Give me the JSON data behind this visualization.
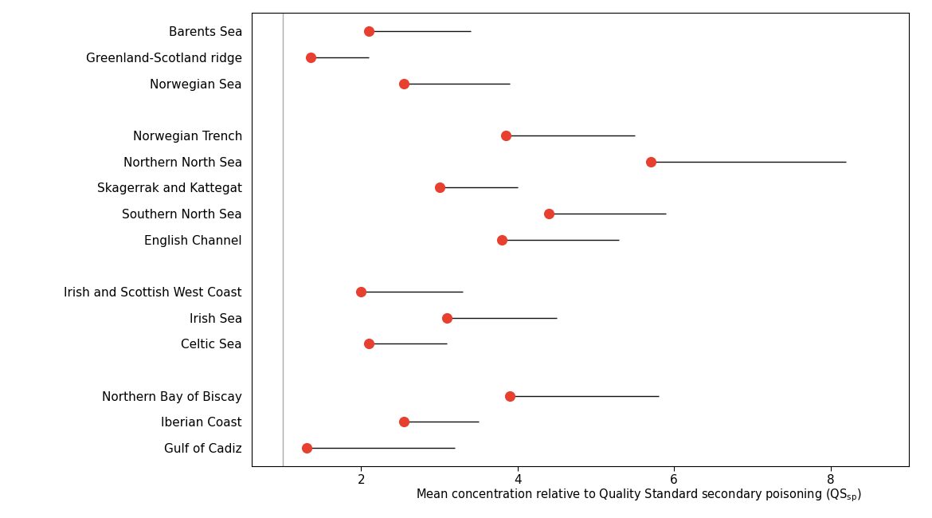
{
  "categories": [
    "Barents Sea",
    "Greenland-Scotland ridge",
    "Norwegian Sea",
    "",
    "Norwegian Trench",
    "Northern North Sea",
    "Skagerrak and Kattegat",
    "Southern North Sea",
    "English Channel",
    "",
    "Irish and Scottish West Coast",
    "Irish Sea",
    "Celtic Sea",
    "",
    "Northern Bay of Biscay",
    "Iberian Coast",
    "Gulf of Cadiz"
  ],
  "mean_values": [
    2.1,
    1.35,
    2.55,
    null,
    3.85,
    5.7,
    3.0,
    4.4,
    3.8,
    null,
    2.0,
    3.1,
    2.1,
    null,
    3.9,
    2.55,
    1.3
  ],
  "error_high": [
    3.4,
    2.1,
    3.9,
    null,
    5.5,
    8.2,
    4.0,
    5.9,
    5.3,
    null,
    3.3,
    4.5,
    3.1,
    null,
    5.8,
    3.5,
    3.2
  ],
  "dot_color": "#e84030",
  "line_color": "#111111",
  "vline_x": 1.0,
  "vline_color": "#aaaaaa",
  "xlim_left": 0.6,
  "xlim_right": 9.0,
  "xticks": [
    2,
    4,
    6,
    8
  ],
  "background_color": "#ffffff",
  "label_fontsize": 11,
  "tick_fontsize": 11,
  "dot_size": 90
}
